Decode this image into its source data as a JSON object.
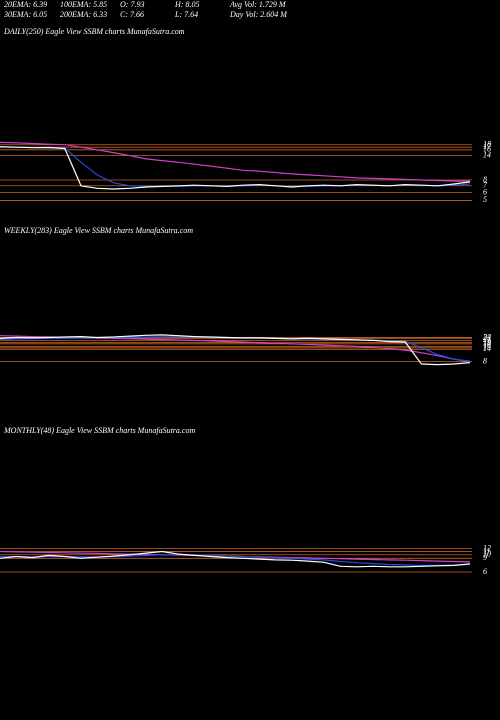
{
  "header": {
    "rows": [
      [
        "20EMA: 6.39",
        "100EMA: 5.85",
        "O: 7.93",
        "H: 8.05",
        "Avg Vol: 1.729 M"
      ],
      [
        "30EMA: 6.05",
        "200EMA: 6.33",
        "C: 7.66",
        "L: 7.64",
        "Day Vol: 2.604 M"
      ]
    ]
  },
  "chart_data": [
    {
      "type": "line",
      "title": "DAILY(250) Eagle  View  SSBM charts MunafaSutra.com",
      "log_scale": true,
      "ylim": [
        4.5,
        200
      ],
      "yticks": [
        18,
        17,
        16,
        14,
        8,
        7,
        6,
        5
      ],
      "level_color": "#c8641e",
      "categories": [
        null,
        null,
        null,
        null,
        null,
        null,
        null,
        null,
        null,
        null,
        null,
        null,
        null,
        null,
        null,
        null,
        null,
        null,
        null,
        null,
        null,
        null,
        null,
        null,
        null,
        null,
        null,
        null,
        null,
        null
      ],
      "series": [
        {
          "color": "#d040d0",
          "values": [
            19,
            18.8,
            18.5,
            18.2,
            18,
            17,
            16,
            15,
            14,
            13,
            12.5,
            12,
            11.5,
            11,
            10.5,
            10,
            9.8,
            9.5,
            9.2,
            9,
            8.8,
            8.6,
            8.4,
            8.3,
            8.2,
            8.1,
            8,
            7.9,
            7.8,
            7.8
          ]
        },
        {
          "color": "#1f4fd8",
          "values": [
            17,
            17,
            16.9,
            16.8,
            16.7,
            12,
            9,
            7.5,
            7,
            6.9,
            6.9,
            6.9,
            7,
            7,
            6.9,
            7,
            7.1,
            7,
            6.9,
            6.9,
            7,
            7,
            7.1,
            7.1,
            7,
            7.1,
            7.1,
            7,
            7.1,
            7.3
          ]
        },
        {
          "color": "#ffffff",
          "values": [
            17.2,
            17,
            16.8,
            16.9,
            16.5,
            7,
            6.6,
            6.5,
            6.6,
            6.8,
            6.9,
            7,
            7.1,
            7,
            6.9,
            7.1,
            7.2,
            7,
            6.8,
            7,
            7.1,
            7,
            7.2,
            7.1,
            7,
            7.2,
            7.1,
            7,
            7.3,
            7.66
          ]
        }
      ]
    },
    {
      "type": "line",
      "title": "WEEKLY(283) Eagle  View  SSBM charts MunafaSutra.com",
      "log_scale": true,
      "ylim": [
        6,
        2000
      ],
      "yticks": [
        24,
        23,
        21,
        19,
        18,
        16,
        15,
        14,
        8
      ],
      "level_color": "#c8641e",
      "categories": [
        null,
        null,
        null,
        null,
        null,
        null,
        null,
        null,
        null,
        null,
        null,
        null,
        null,
        null,
        null,
        null,
        null,
        null,
        null,
        null,
        null,
        null,
        null,
        null,
        null,
        null,
        null,
        null,
        null,
        null
      ],
      "series": [
        {
          "color": "#d040d0",
          "values": [
            26,
            25.5,
            25,
            24.6,
            24.2,
            23.8,
            23.4,
            23,
            22.6,
            22.2,
            21.8,
            21.4,
            21,
            20.5,
            20,
            19.5,
            19,
            18.5,
            18,
            17.5,
            17,
            16.5,
            16,
            15.3,
            14.5,
            13.5,
            12,
            10.5,
            9,
            8
          ]
        },
        {
          "color": "#1f4fd8",
          "values": [
            22,
            22.5,
            22.8,
            23,
            23.3,
            23.6,
            23.8,
            24,
            24.2,
            24.5,
            24.8,
            24.8,
            24.6,
            24.3,
            24,
            23.7,
            23.4,
            23.1,
            22.8,
            22.6,
            22.3,
            22,
            21.6,
            21.2,
            20.7,
            20.2,
            15,
            11,
            9,
            8.2
          ]
        },
        {
          "color": "#ffffff",
          "values": [
            23,
            24,
            23.5,
            24,
            24.5,
            25,
            24,
            24.5,
            25.5,
            26.5,
            27,
            26,
            25,
            24.5,
            24,
            23.5,
            23.5,
            23,
            22.5,
            23,
            22.5,
            22,
            21.5,
            21,
            20,
            19.5,
            7.2,
            7,
            7.2,
            7.66
          ]
        }
      ]
    },
    {
      "type": "line",
      "title": "MONTHLY(48) Eagle  View  SSBM charts MunafaSutra.com",
      "log_scale": true,
      "ylim": [
        6,
        300
      ],
      "yticks": [
        12,
        11,
        10,
        9,
        6
      ],
      "level_color": "#c8641e",
      "categories": [
        null,
        null,
        null,
        null,
        null,
        null,
        null,
        null,
        null,
        null,
        null,
        null,
        null,
        null,
        null,
        null,
        null,
        null,
        null,
        null,
        null,
        null,
        null,
        null,
        null,
        null,
        null,
        null,
        null,
        null
      ],
      "series": [
        {
          "color": "#d040d0",
          "values": [
            11,
            10.9,
            10.8,
            10.7,
            10.6,
            10.5,
            10.4,
            10.3,
            10.2,
            10.1,
            10,
            9.9,
            9.8,
            9.7,
            9.6,
            9.5,
            9.4,
            9.3,
            9.2,
            9.1,
            9,
            8.9,
            8.8,
            8.7,
            8.6,
            8.5,
            8.4,
            8.3,
            8.2,
            8.1
          ]
        },
        {
          "color": "#1f4fd8",
          "values": [
            9.5,
            9.5,
            9.4,
            9.5,
            9.5,
            9.4,
            9.4,
            9.5,
            9.6,
            9.8,
            10,
            10,
            9.9,
            9.8,
            9.6,
            9.5,
            9.3,
            9.1,
            9,
            8.8,
            8.6,
            8.2,
            7.9,
            7.7,
            7.5,
            7.4,
            7.3,
            7.3,
            7.3,
            7.5
          ]
        },
        {
          "color": "#ffffff",
          "values": [
            9,
            9.5,
            9.2,
            9.8,
            9.5,
            9,
            9.3,
            9.6,
            10,
            10.5,
            11,
            10.2,
            9.8,
            9.5,
            9.2,
            9,
            8.8,
            8.6,
            8.5,
            8.3,
            8,
            7.1,
            7,
            7.1,
            7,
            7,
            7.1,
            7.2,
            7.3,
            7.66
          ]
        }
      ]
    }
  ]
}
